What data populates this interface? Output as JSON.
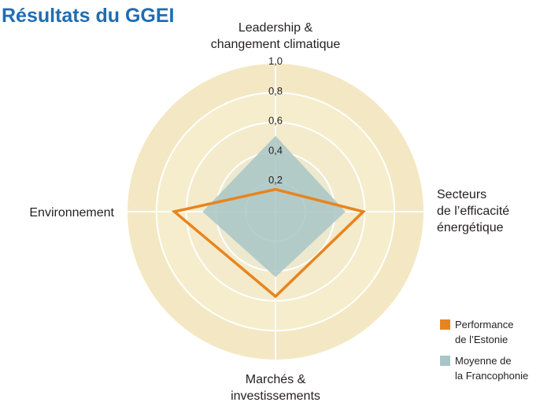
{
  "chart_data": {
    "type": "radar",
    "title": "Résultats du GGEI",
    "categories": [
      "Leadership &\nchangement climatique",
      "Secteurs\nde l’efficacité\nénergétique",
      "Marchés &\ninvestissements",
      "Environnement"
    ],
    "series": [
      {
        "name": "Moyenne de\nla Francophonie",
        "color": "#a9c6c6",
        "values": [
          0.51,
          0.47,
          0.44,
          0.49
        ]
      },
      {
        "name": "Performance\nde l’Estonie",
        "color": "#e8841e",
        "values": [
          0.15,
          0.59,
          0.57,
          0.68
        ]
      }
    ],
    "ylim": [
      0,
      1
    ],
    "yticks": [
      {
        "value": 0.2,
        "label": "0,2"
      },
      {
        "value": 0.4,
        "label": "0,4"
      },
      {
        "value": 0.6,
        "label": "0,6"
      },
      {
        "value": 0.8,
        "label": "0,8"
      },
      {
        "value": 1.0,
        "label": "1,0"
      }
    ]
  }
}
